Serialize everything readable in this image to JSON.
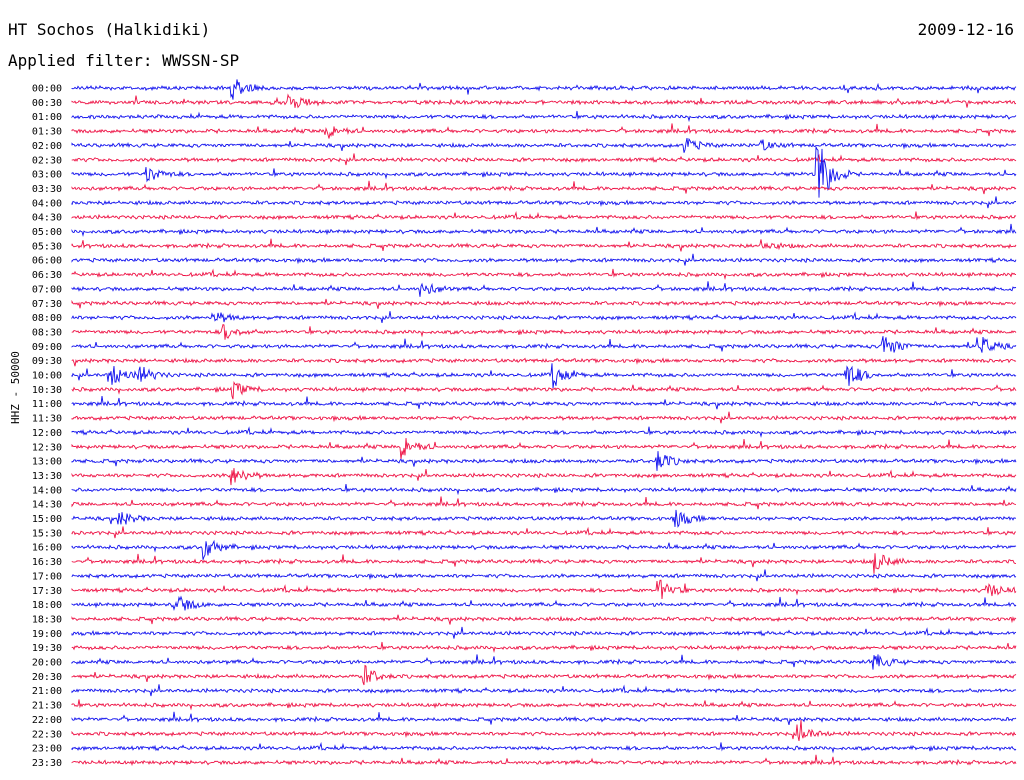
{
  "header": {
    "station": "HT Sochos (Halkidiki)",
    "date": "2009-12-16",
    "filter_label": "Applied filter: WWSSN-SP"
  },
  "channel_label": "HHZ - 50000",
  "colors": {
    "odd_trace": "#1010ee",
    "even_trace": "#ee1144",
    "text": "#000000"
  },
  "chart_data": {
    "type": "line",
    "title": "HT Sochos (Halkidiki)",
    "subtitle": "Applied filter: WWSSN-SP",
    "ylabel": "HHZ - 50000",
    "xlabel": "",
    "row_labels": [
      "00:00",
      "00:30",
      "01:00",
      "01:30",
      "02:00",
      "02:30",
      "03:00",
      "03:30",
      "04:00",
      "04:30",
      "05:00",
      "05:30",
      "06:00",
      "06:30",
      "07:00",
      "07:30",
      "08:00",
      "08:30",
      "09:00",
      "09:30",
      "10:00",
      "10:30",
      "11:00",
      "11:30",
      "12:00",
      "12:30",
      "13:00",
      "13:30",
      "14:00",
      "14:30",
      "15:00",
      "15:30",
      "16:00",
      "16:30",
      "17:00",
      "17:30",
      "18:00",
      "18:30",
      "19:00",
      "19:30",
      "20:00",
      "20:30",
      "21:00",
      "21:30",
      "22:00",
      "22:30",
      "23:00",
      "23:30"
    ],
    "row_colors": [
      "#1010ee",
      "#ee1144"
    ],
    "events": [
      {
        "row": "00:00",
        "at": 0.17,
        "amp": 12
      },
      {
        "row": "00:30",
        "at": 0.23,
        "amp": 9
      },
      {
        "row": "01:30",
        "at": 0.27,
        "amp": 8
      },
      {
        "row": "02:00",
        "at": 0.65,
        "amp": 7
      },
      {
        "row": "02:00",
        "at": 0.73,
        "amp": 5
      },
      {
        "row": "03:00",
        "at": 0.08,
        "amp": 8
      },
      {
        "row": "03:00",
        "at": 0.79,
        "amp": 38
      },
      {
        "row": "05:30",
        "at": 0.73,
        "amp": 5
      },
      {
        "row": "07:00",
        "at": 0.37,
        "amp": 8
      },
      {
        "row": "08:00",
        "at": 0.15,
        "amp": 7
      },
      {
        "row": "08:30",
        "at": 0.16,
        "amp": 8
      },
      {
        "row": "09:00",
        "at": 0.86,
        "amp": 14
      },
      {
        "row": "09:00",
        "at": 0.96,
        "amp": 12
      },
      {
        "row": "10:00",
        "at": 0.04,
        "amp": 12
      },
      {
        "row": "10:00",
        "at": 0.07,
        "amp": 11
      },
      {
        "row": "10:00",
        "at": 0.51,
        "amp": 12
      },
      {
        "row": "10:00",
        "at": 0.82,
        "amp": 15
      },
      {
        "row": "10:30",
        "at": 0.17,
        "amp": 8
      },
      {
        "row": "12:30",
        "at": 0.35,
        "amp": 12
      },
      {
        "row": "13:00",
        "at": 0.62,
        "amp": 10
      },
      {
        "row": "13:30",
        "at": 0.17,
        "amp": 10
      },
      {
        "row": "15:00",
        "at": 0.05,
        "amp": 8
      },
      {
        "row": "15:00",
        "at": 0.64,
        "amp": 9
      },
      {
        "row": "16:00",
        "at": 0.14,
        "amp": 12
      },
      {
        "row": "16:30",
        "at": 0.85,
        "amp": 11
      },
      {
        "row": "17:30",
        "at": 0.62,
        "amp": 12
      },
      {
        "row": "17:30",
        "at": 0.97,
        "amp": 8
      },
      {
        "row": "18:00",
        "at": 0.11,
        "amp": 11
      },
      {
        "row": "20:00",
        "at": 0.85,
        "amp": 8
      },
      {
        "row": "20:30",
        "at": 0.31,
        "amp": 10
      },
      {
        "row": "22:30",
        "at": 0.77,
        "amp": 9
      }
    ]
  }
}
